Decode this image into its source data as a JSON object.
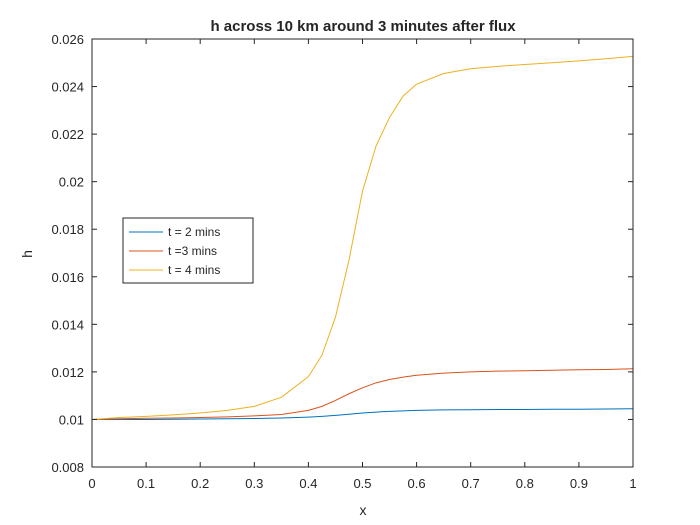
{
  "chart_data": {
    "type": "line",
    "title": "h across 10 km around 3 minutes after flux",
    "xlabel": "x",
    "ylabel": "h",
    "xlim": [
      0,
      1
    ],
    "ylim": [
      0.008,
      0.026
    ],
    "xticks": [
      0,
      0.1,
      0.2,
      0.3,
      0.4,
      0.5,
      0.6,
      0.7,
      0.8,
      0.9,
      1
    ],
    "xtick_labels": [
      "0",
      "0.1",
      "0.2",
      "0.3",
      "0.4",
      "0.5",
      "0.6",
      "0.7",
      "0.8",
      "0.9",
      "1"
    ],
    "yticks": [
      0.008,
      0.01,
      0.012,
      0.014,
      0.016,
      0.018,
      0.02,
      0.022,
      0.024,
      0.026
    ],
    "ytick_labels": [
      "0.008",
      "0.01",
      "0.012",
      "0.014",
      "0.016",
      "0.018",
      "0.02",
      "0.022",
      "0.024",
      "0.026"
    ],
    "grid": false,
    "legend_position": "left",
    "x": [
      0,
      0.05,
      0.1,
      0.15,
      0.2,
      0.25,
      0.3,
      0.35,
      0.4,
      0.425,
      0.45,
      0.475,
      0.5,
      0.525,
      0.55,
      0.575,
      0.6,
      0.65,
      0.7,
      0.75,
      0.8,
      0.85,
      0.9,
      0.95,
      1
    ],
    "series": [
      {
        "name": "t = 2 mins",
        "color": "#0072BD",
        "values": [
          0.01,
          0.01,
          0.01,
          0.01001,
          0.01002,
          0.01003,
          0.01004,
          0.01006,
          0.0101,
          0.01013,
          0.01017,
          0.01022,
          0.01027,
          0.01031,
          0.01034,
          0.01036,
          0.01038,
          0.0104,
          0.01041,
          0.01042,
          0.01042,
          0.01043,
          0.01043,
          0.01044,
          0.01045
        ]
      },
      {
        "name": "t =3 mins",
        "color": "#D95319",
        "values": [
          0.01,
          0.01003,
          0.01005,
          0.01006,
          0.01008,
          0.01011,
          0.01015,
          0.01021,
          0.01038,
          0.01055,
          0.0108,
          0.01108,
          0.01133,
          0.01154,
          0.01168,
          0.01178,
          0.01186,
          0.01195,
          0.012,
          0.01203,
          0.01205,
          0.01207,
          0.01209,
          0.0121,
          0.01213
        ]
      },
      {
        "name": "t = 4 mins",
        "color": "#EDB120",
        "values": [
          0.01,
          0.01008,
          0.01013,
          0.01019,
          0.01027,
          0.01038,
          0.01055,
          0.01093,
          0.0118,
          0.0127,
          0.0143,
          0.0167,
          0.0196,
          0.0215,
          0.0227,
          0.0236,
          0.0241,
          0.02455,
          0.02475,
          0.02485,
          0.02493,
          0.025,
          0.02508,
          0.02517,
          0.02527
        ]
      }
    ]
  }
}
